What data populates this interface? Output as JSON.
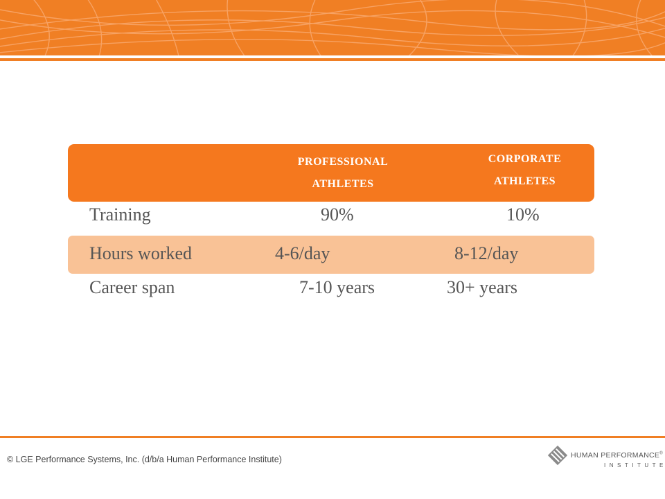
{
  "columns": {
    "professional": {
      "line1": "PROFESSIONAL",
      "line2": "ATHLETES"
    },
    "corporate": {
      "line1": "CORPORATE",
      "line2": "ATHLETES"
    }
  },
  "rows": [
    {
      "label": "Training",
      "professional": "90%",
      "corporate": "10%"
    },
    {
      "label": "Hours worked",
      "professional": "4-6/day",
      "corporate": "8-12/day"
    },
    {
      "label": "Career span",
      "professional": "7-10 years",
      "corporate": "30+ years"
    }
  ],
  "footer": {
    "copyright": "© LGE Performance Systems, Inc. (d/b/a Human Performance Institute)",
    "logo_name": "HUMAN PERFORMANCE",
    "logo_reg": "®",
    "logo_sub": "INSTITUTE"
  },
  "colors": {
    "accent": "#f07f24",
    "header": "#f5781e",
    "highlight": "#f9c296",
    "text": "#555555"
  }
}
